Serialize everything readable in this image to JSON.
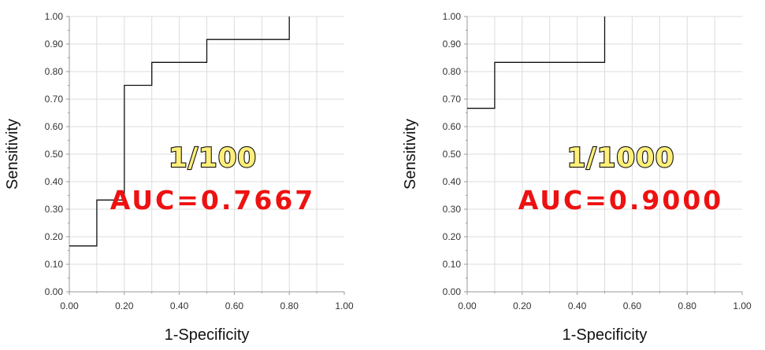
{
  "chart_data": [
    {
      "type": "line",
      "line_style": "step",
      "title": "",
      "xlabel": "1-Specificity",
      "ylabel": "Sensitivity",
      "xlim": [
        0,
        1
      ],
      "ylim": [
        0,
        1
      ],
      "grid": true,
      "x_ticks": [
        "0.00",
        "0.20",
        "0.40",
        "0.60",
        "0.80",
        "1.00"
      ],
      "y_ticks": [
        "0.00",
        "0.10",
        "0.20",
        "0.30",
        "0.40",
        "0.50",
        "0.60",
        "0.70",
        "0.80",
        "0.90",
        "1.00"
      ],
      "series": [
        {
          "x": [
            0.0,
            0.1,
            0.1,
            0.2,
            0.2,
            0.3,
            0.3,
            0.5,
            0.5,
            0.8,
            0.8
          ],
          "y": [
            0.1667,
            0.1667,
            0.3333,
            0.3333,
            0.75,
            0.75,
            0.8333,
            0.8333,
            0.9167,
            0.9167,
            1.0
          ]
        }
      ],
      "annotations": {
        "label": "1/100",
        "auc": "AUC=0.7667"
      }
    },
    {
      "type": "line",
      "line_style": "step",
      "title": "",
      "xlabel": "1-Specificity",
      "ylabel": "Sensitivity",
      "xlim": [
        0,
        1
      ],
      "ylim": [
        0,
        1
      ],
      "grid": true,
      "x_ticks": [
        "0.00",
        "0.20",
        "0.40",
        "0.60",
        "0.80",
        "1.00"
      ],
      "y_ticks": [
        "0.00",
        "0.10",
        "0.20",
        "0.30",
        "0.40",
        "0.50",
        "0.60",
        "0.70",
        "0.80",
        "0.90",
        "1.00"
      ],
      "series": [
        {
          "x": [
            0.0,
            0.1,
            0.1,
            0.5,
            0.5
          ],
          "y": [
            0.6667,
            0.6667,
            0.8333,
            0.8333,
            1.0
          ]
        }
      ],
      "annotations": {
        "label": "1/1000",
        "auc": "AUC=0.9000"
      }
    }
  ],
  "colors": {
    "line": "#111111",
    "grid": "#dcdcdc",
    "axis": "#9a9a9a",
    "label_fill": "#ffef7a",
    "auc": "#ee1111"
  }
}
